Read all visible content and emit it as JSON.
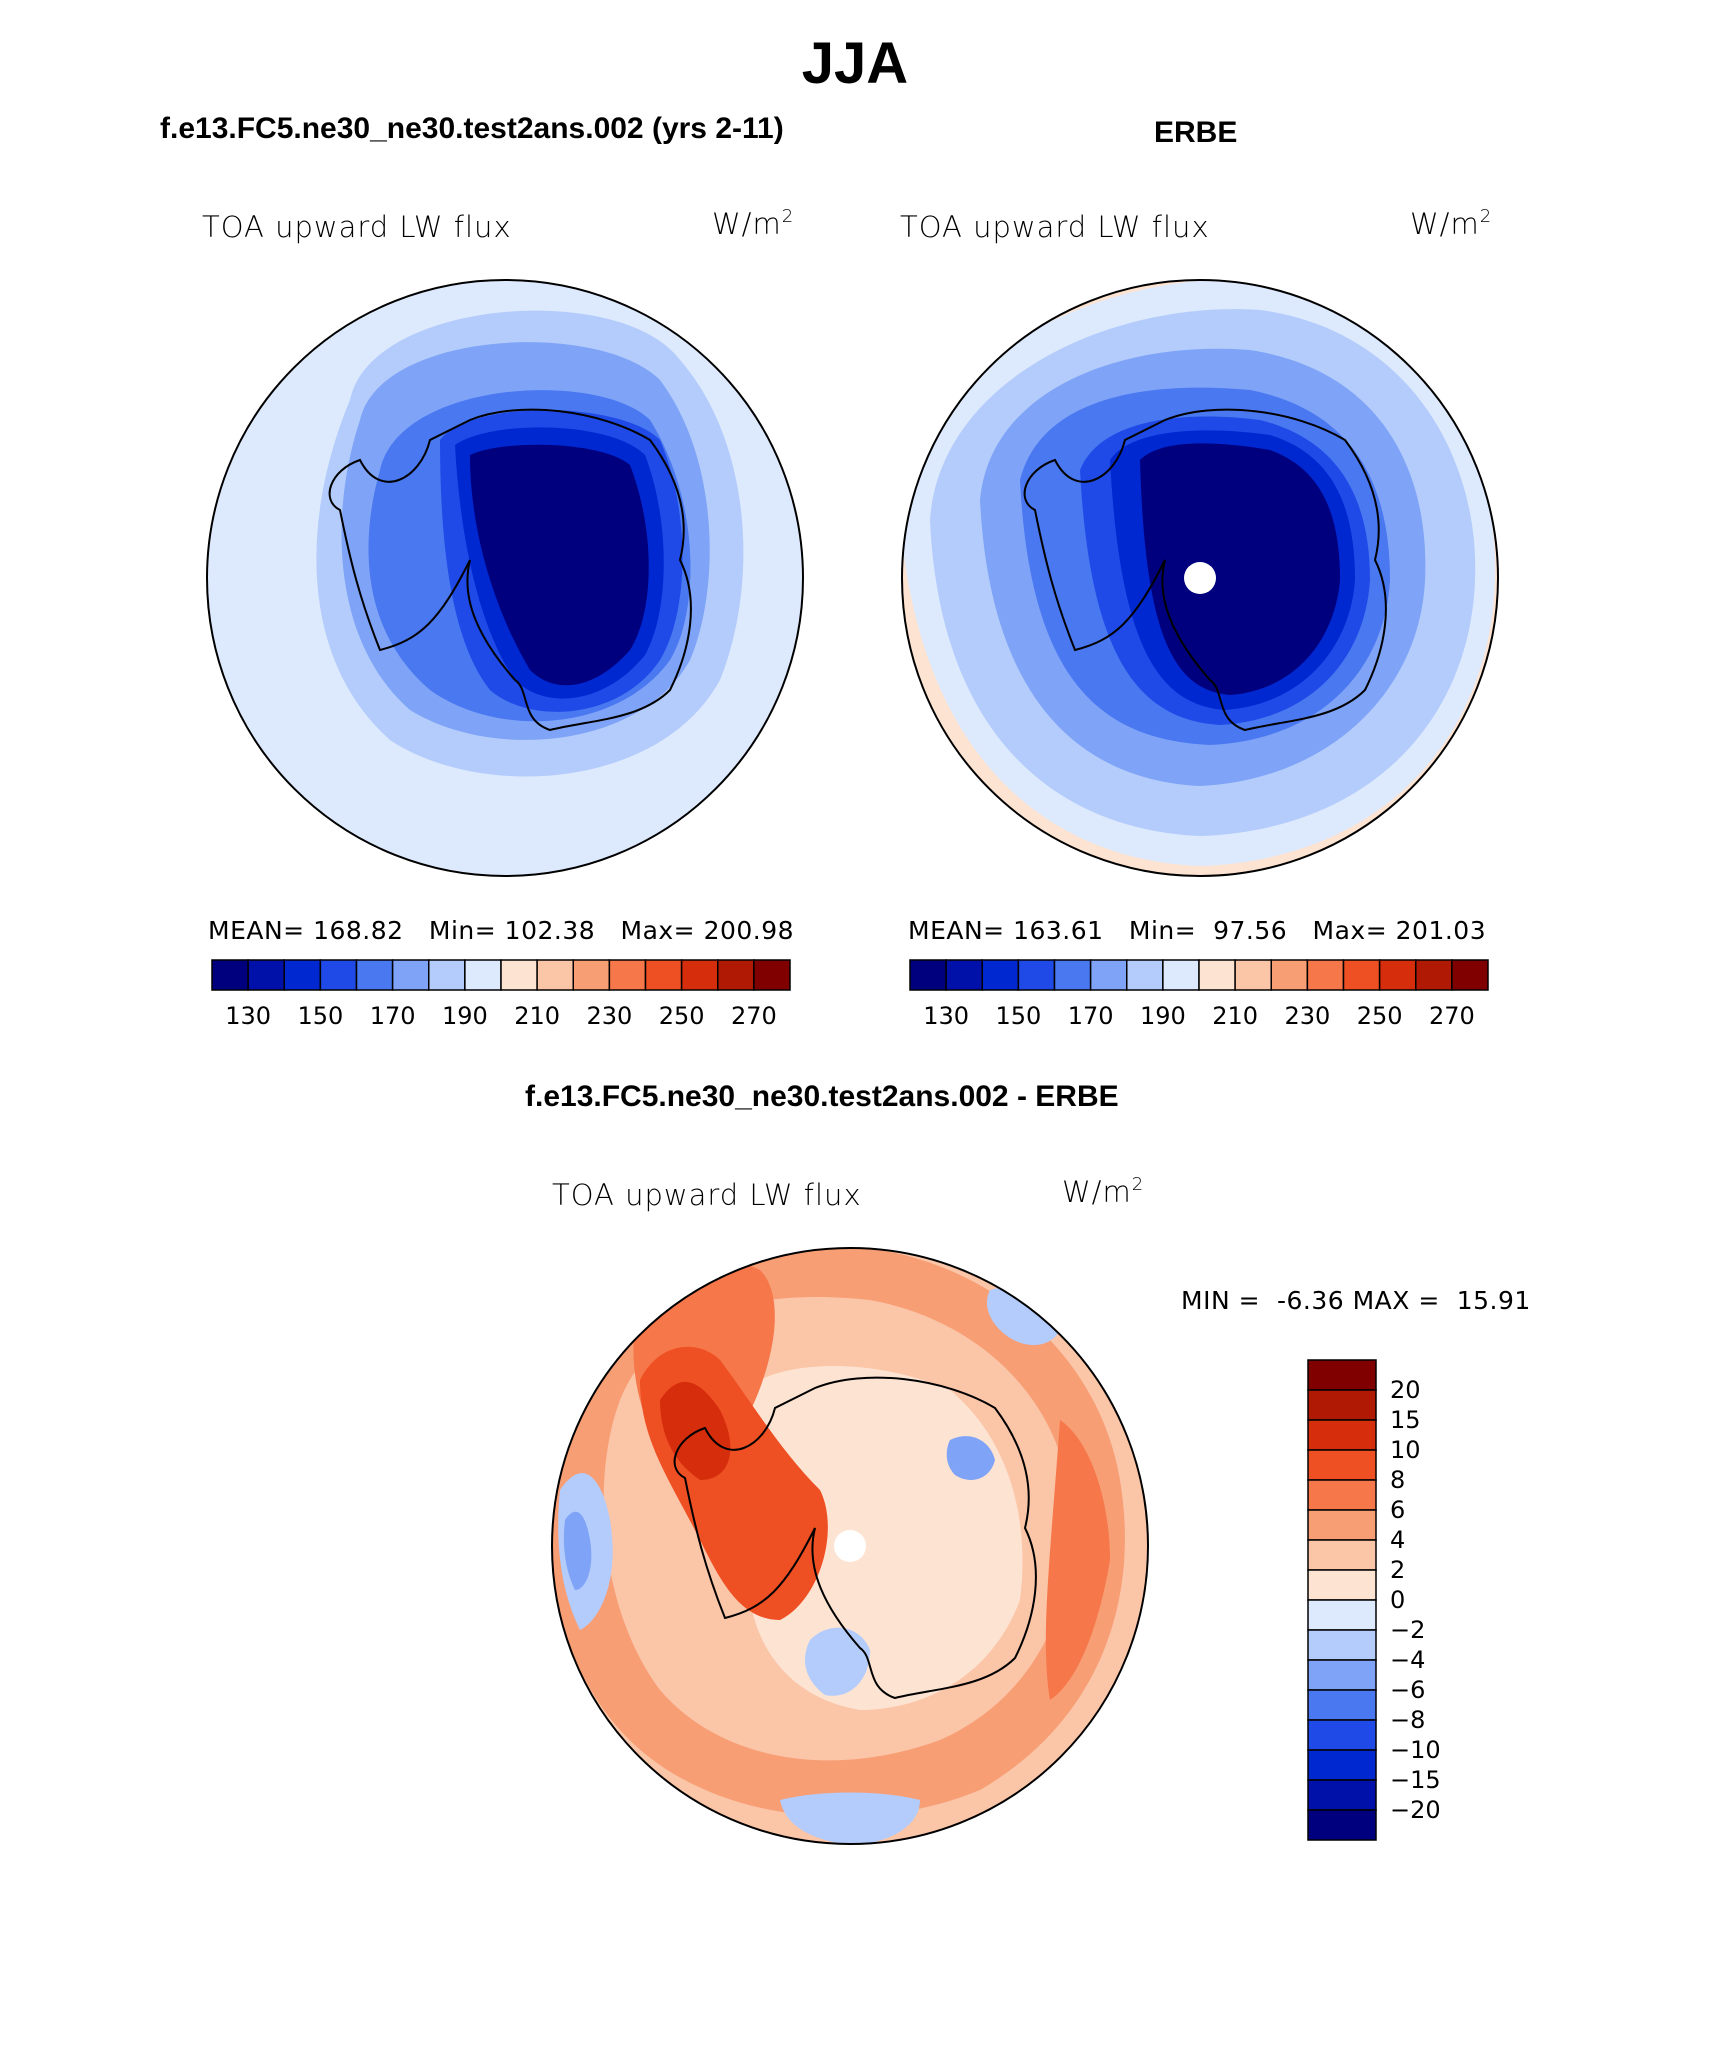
{
  "title": "JJA",
  "panels": [
    {
      "id": "model",
      "header": "f.e13.FC5.ne30_ne30.test2ans.002 (yrs 2-11)",
      "variable": "TOA upward LW flux",
      "units_base": "W/m",
      "units_exp": "2",
      "mean_label": "MEAN=",
      "mean": "168.82",
      "min_label": "Min=",
      "min": "102.38",
      "max_label": "Max=",
      "max": "200.98"
    },
    {
      "id": "obs",
      "header": "ERBE",
      "variable": "TOA upward LW flux",
      "units_base": "W/m",
      "units_exp": "2",
      "mean_label": "MEAN=",
      "mean": "163.61",
      "min_label": "Min=",
      "min": "97.56",
      "max_label": "Max=",
      "max": "201.03"
    }
  ],
  "colorbar_abs": {
    "colors": [
      "#00007f",
      "#0011aa",
      "#0028d0",
      "#1f4ae8",
      "#4a78f0",
      "#7ea3f7",
      "#b3ccfb",
      "#dde9fd",
      "#fde4d2",
      "#fbc5a8",
      "#f89e75",
      "#f5774a",
      "#ee4f23",
      "#d62e0c",
      "#b01a04",
      "#800000"
    ],
    "tick_labels": [
      "130",
      "150",
      "170",
      "190",
      "210",
      "230",
      "250",
      "270"
    ]
  },
  "diff_panel": {
    "header": "f.e13.FC5.ne30_ne30.test2ans.002 - ERBE",
    "variable": "TOA upward LW flux",
    "units_base": "W/m",
    "units_exp": "2",
    "min_label": "MIN =",
    "min": "-6.36",
    "max_label": "MAX =",
    "max": "15.91"
  },
  "colorbar_diff": {
    "colors_top_to_bottom": [
      "#800000",
      "#b01a04",
      "#d62e0c",
      "#ee4f23",
      "#f5774a",
      "#f89e75",
      "#fbc5a8",
      "#fde4d2",
      "#dde9fd",
      "#b3ccfb",
      "#7ea3f7",
      "#4a78f0",
      "#1f4ae8",
      "#0028d0",
      "#0011aa",
      "#00007f"
    ],
    "tick_labels": [
      "20",
      "15",
      "10",
      "8",
      "6",
      "4",
      "2",
      "0",
      "−2",
      "−4",
      "−6",
      "−8",
      "−10",
      "−15",
      "−20"
    ]
  },
  "chart_data": [
    {
      "type": "heatmap",
      "title": "f.e13.FC5.ne30_ne30.test2ans.002 (yrs 2-11)",
      "variable": "TOA upward LW flux",
      "units": "W/m2",
      "projection": "south polar stereographic",
      "season": "JJA",
      "levels": [
        130,
        150,
        170,
        190,
        210,
        230,
        250,
        270
      ],
      "stats": {
        "mean": 168.82,
        "min": 102.38,
        "max": 200.98
      }
    },
    {
      "type": "heatmap",
      "title": "ERBE",
      "variable": "TOA upward LW flux",
      "units": "W/m2",
      "projection": "south polar stereographic",
      "season": "JJA",
      "levels": [
        130,
        150,
        170,
        190,
        210,
        230,
        250,
        270
      ],
      "stats": {
        "mean": 163.61,
        "min": 97.56,
        "max": 201.03
      }
    },
    {
      "type": "heatmap",
      "title": "f.e13.FC5.ne30_ne30.test2ans.002 - ERBE",
      "variable": "TOA upward LW flux",
      "units": "W/m2",
      "projection": "south polar stereographic",
      "season": "JJA",
      "levels": [
        -20,
        -15,
        -10,
        -8,
        -6,
        -4,
        -2,
        0,
        2,
        4,
        6,
        8,
        10,
        15,
        20
      ],
      "stats": {
        "min": -6.36,
        "max": 15.91
      }
    }
  ]
}
